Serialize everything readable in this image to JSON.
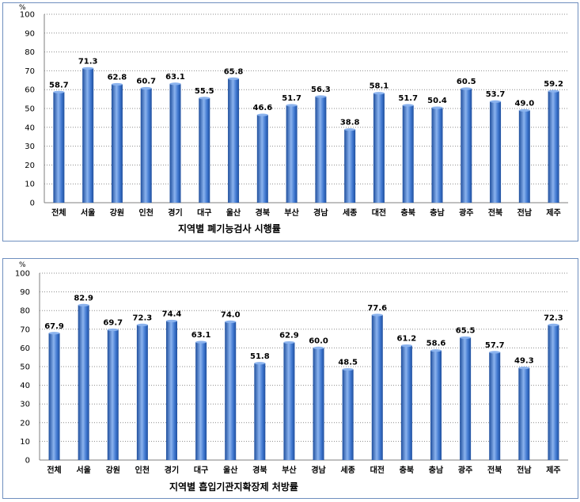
{
  "chart_data": [
    {
      "type": "bar",
      "title": "지역별 폐기능검사 시행률",
      "unit": "%",
      "ylim": [
        0,
        100
      ],
      "yticks": [
        0,
        10,
        20,
        30,
        40,
        50,
        60,
        70,
        80,
        90,
        100
      ],
      "grid": true,
      "categories": [
        "전체",
        "서울",
        "강원",
        "인천",
        "경기",
        "대구",
        "울산",
        "경북",
        "부산",
        "경남",
        "세종",
        "대전",
        "충북",
        "충남",
        "광주",
        "전북",
        "전남",
        "제주"
      ],
      "values": [
        58.7,
        71.3,
        62.8,
        60.7,
        63.1,
        55.5,
        65.8,
        46.6,
        51.7,
        56.3,
        38.8,
        58.1,
        51.7,
        50.4,
        60.5,
        53.7,
        49.0,
        59.2
      ],
      "labels": [
        "58.7",
        "71.3",
        "62.8",
        "60.7",
        "63.1",
        "55.5",
        "65.8",
        "46.6",
        "51.7",
        "56.3",
        "38.8",
        "58.1",
        "51.7",
        "50.4",
        "60.5",
        "53.7",
        "49.0",
        "59.2"
      ]
    },
    {
      "type": "bar",
      "title": "지역별 흡입기관지확장제 처방률",
      "unit": "%",
      "ylim": [
        0,
        100
      ],
      "yticks": [
        0,
        10,
        20,
        30,
        40,
        50,
        60,
        70,
        80,
        90,
        100
      ],
      "grid": true,
      "categories": [
        "전체",
        "서울",
        "강원",
        "인천",
        "경기",
        "대구",
        "울산",
        "경북",
        "부산",
        "경남",
        "세종",
        "대전",
        "충북",
        "충남",
        "광주",
        "전북",
        "전남",
        "제주"
      ],
      "values": [
        67.9,
        82.9,
        69.7,
        72.3,
        74.4,
        63.1,
        74.0,
        51.8,
        62.9,
        60.0,
        48.5,
        77.6,
        61.2,
        58.6,
        65.5,
        57.7,
        49.3,
        72.3
      ],
      "labels": [
        "67.9",
        "82.9",
        "69.7",
        "72.3",
        "74.4",
        "63.1",
        "74.0",
        "51.8",
        "62.9",
        "60.0",
        "48.5",
        "77.6",
        "61.2",
        "58.6",
        "65.5",
        "57.7",
        "49.3",
        "72.3"
      ]
    }
  ],
  "colors": {
    "bar_dark": "#1f4f9e",
    "bar_mid": "#3f77cf",
    "bar_light": "#8bb3ee",
    "border": "#6f8fbf"
  }
}
